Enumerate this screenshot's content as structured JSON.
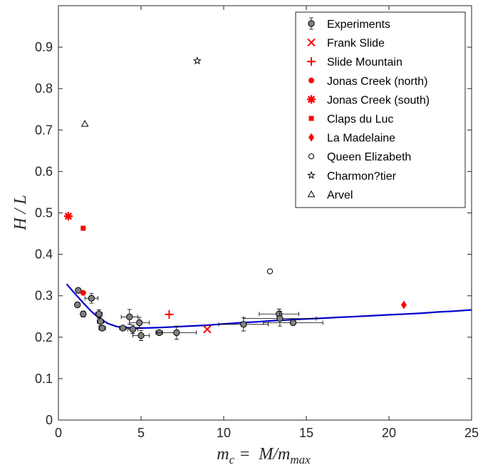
{
  "chart_data": {
    "type": "scatter",
    "xlabel": {
      "main": "m",
      "sub": "c",
      "eq": " =  M/m",
      "sub2": "max"
    },
    "ylabel": "H / L",
    "xlim": [
      0,
      25
    ],
    "ylim": [
      0,
      1
    ],
    "xticks": [
      0,
      5,
      10,
      15,
      20,
      25
    ],
    "yticks": [
      0,
      0.1,
      0.2,
      0.3,
      0.4,
      0.5,
      0.6,
      0.7,
      0.8,
      0.9
    ],
    "grid": false,
    "legend_position": "top-right",
    "colors": {
      "experiments_fill": "#808080",
      "field_red": "#ff0000",
      "fit_line": "#0000cc",
      "axis": "#262626"
    },
    "experiments": {
      "name": "Experiments",
      "points": [
        {
          "x": 1.2,
          "y": 0.313,
          "xerr": 0.1,
          "yerr": 0.003
        },
        {
          "x": 1.15,
          "y": 0.278,
          "xerr": 0.1,
          "yerr": 0.005
        },
        {
          "x": 1.5,
          "y": 0.256,
          "xerr": 0.1,
          "yerr": 0.007
        },
        {
          "x": 2.0,
          "y": 0.294,
          "xerr": 0.4,
          "yerr": 0.012
        },
        {
          "x": 2.45,
          "y": 0.256,
          "xerr": 0.2,
          "yerr": 0.01
        },
        {
          "x": 2.55,
          "y": 0.238,
          "xerr": 0.2,
          "yerr": 0.01
        },
        {
          "x": 2.65,
          "y": 0.222,
          "xerr": 0.2,
          "yerr": 0.006
        },
        {
          "x": 3.9,
          "y": 0.222,
          "xerr": 0.2,
          "yerr": 0.003
        },
        {
          "x": 4.3,
          "y": 0.249,
          "xerr": 0.5,
          "yerr": 0.018
        },
        {
          "x": 4.5,
          "y": 0.219,
          "xerr": 0.3,
          "yerr": 0.01
        },
        {
          "x": 4.9,
          "y": 0.235,
          "xerr": 0.6,
          "yerr": 0.013
        },
        {
          "x": 5.0,
          "y": 0.204,
          "xerr": 0.5,
          "yerr": 0.012
        },
        {
          "x": 6.1,
          "y": 0.211,
          "xerr": 0.2,
          "yerr": 0.003
        },
        {
          "x": 7.15,
          "y": 0.211,
          "xerr": 1.2,
          "yerr": 0.016
        },
        {
          "x": 11.2,
          "y": 0.231,
          "xerr": 1.5,
          "yerr": 0.016
        },
        {
          "x": 13.35,
          "y": 0.256,
          "xerr": 1.2,
          "yerr": 0.012
        },
        {
          "x": 13.4,
          "y": 0.245,
          "xerr": 2.2,
          "yerr": 0.018
        },
        {
          "x": 14.2,
          "y": 0.235,
          "xerr": 1.8,
          "yerr": 0.005
        }
      ]
    },
    "field_cases": [
      {
        "name": "Frank Slide",
        "marker": "x",
        "color": "#ff0000",
        "x": 9.0,
        "y": 0.219
      },
      {
        "name": "Slide Mountain",
        "marker": "plus",
        "color": "#ff0000",
        "x": 6.7,
        "y": 0.255
      },
      {
        "name": "Jonas Creek (north)",
        "marker": "dot",
        "color": "#ff0000",
        "x": 1.5,
        "y": 0.307
      },
      {
        "name": "Jonas Creek (south)",
        "marker": "asterisk",
        "color": "#ff0000",
        "x": 0.6,
        "y": 0.492
      },
      {
        "name": "Claps du Luc",
        "marker": "square",
        "color": "#ff0000",
        "x": 1.5,
        "y": 0.463
      },
      {
        "name": "La Madelaine",
        "marker": "diamond",
        "color": "#ff0000",
        "x": 20.9,
        "y": 0.278
      },
      {
        "name": "Queen Elizabeth",
        "marker": "circle",
        "color": "#000000",
        "x": 12.8,
        "y": 0.359
      },
      {
        "name": "Charmon?tier",
        "marker": "star",
        "color": "#000000",
        "x": 8.4,
        "y": 0.867
      },
      {
        "name": "Arvel",
        "marker": "triangle",
        "color": "#000000",
        "x": 1.6,
        "y": 0.715
      }
    ],
    "fit_curve": {
      "color": "#0000cc",
      "points": [
        [
          0.5,
          0.328
        ],
        [
          1.0,
          0.305
        ],
        [
          1.5,
          0.283
        ],
        [
          2.0,
          0.262
        ],
        [
          2.5,
          0.245
        ],
        [
          3.0,
          0.233
        ],
        [
          3.5,
          0.226
        ],
        [
          4.0,
          0.223
        ],
        [
          5.0,
          0.222
        ],
        [
          6.0,
          0.223
        ],
        [
          7.0,
          0.225
        ],
        [
          8.0,
          0.227
        ],
        [
          9.0,
          0.229
        ],
        [
          10.0,
          0.232
        ],
        [
          11.0,
          0.235
        ],
        [
          12.0,
          0.237
        ],
        [
          13.0,
          0.24
        ],
        [
          14.0,
          0.242
        ],
        [
          15.0,
          0.244
        ],
        [
          16.0,
          0.246
        ],
        [
          17.0,
          0.248
        ],
        [
          18.0,
          0.25
        ],
        [
          19.0,
          0.252
        ],
        [
          20.0,
          0.254
        ],
        [
          21.0,
          0.256
        ],
        [
          22.0,
          0.258
        ],
        [
          23.0,
          0.261
        ],
        [
          24.0,
          0.263
        ],
        [
          25.0,
          0.266
        ]
      ]
    }
  }
}
